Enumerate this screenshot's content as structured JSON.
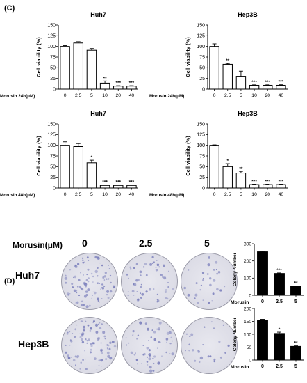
{
  "panels": {
    "c": "(C)",
    "d": "(D)"
  },
  "colony": {
    "title": "Morusin(μM)",
    "doses": [
      "0",
      "2.5",
      "5"
    ],
    "rows": [
      "Huh7",
      "Hep3B"
    ]
  },
  "dish_density": {
    "Huh7": [
      1.0,
      0.55,
      0.25
    ],
    "Hep3B": [
      0.9,
      0.55,
      0.2
    ]
  },
  "chart_data": [
    {
      "type": "bar",
      "title": "Huh7",
      "ylabel": "Cell viability (%)",
      "xlabel_prefix": "Morusin 24h(μM)",
      "categories": [
        "0",
        "2.5",
        "5",
        "10",
        "20",
        "40"
      ],
      "values": [
        100,
        108,
        91,
        14,
        7,
        7
      ],
      "errors": [
        2,
        3,
        4,
        5,
        1,
        1
      ],
      "sig": [
        "",
        "",
        "",
        "**",
        "***",
        "***"
      ],
      "ylim": [
        0,
        150
      ],
      "yticks": [
        0,
        25,
        50,
        75,
        100,
        125,
        150
      ]
    },
    {
      "type": "bar",
      "title": "Hep3B",
      "ylabel": "Cell viability (%)",
      "xlabel_prefix": "Morusin 24h(μM)",
      "categories": [
        "0",
        "2.5",
        "5",
        "10",
        "20",
        "40"
      ],
      "values": [
        100,
        58,
        30,
        9,
        9,
        9
      ],
      "errors": [
        6,
        2,
        12,
        1,
        1,
        2
      ],
      "sig": [
        "",
        "**",
        "",
        "***",
        "***",
        "***"
      ],
      "ylim": [
        0,
        150
      ],
      "yticks": [
        0,
        25,
        50,
        75,
        100,
        125,
        150
      ]
    },
    {
      "type": "bar",
      "title": "Huh7",
      "ylabel": "Cell viability (%)",
      "xlabel_prefix": "Morusin 48h(μM)",
      "categories": [
        "0",
        "2.5",
        "5",
        "10",
        "20",
        "40"
      ],
      "values": [
        100,
        97,
        59,
        6,
        6,
        6
      ],
      "errors": [
        8,
        7,
        6,
        1,
        1,
        1
      ],
      "sig": [
        "",
        "",
        "*",
        "***",
        "***",
        "***"
      ],
      "ylim": [
        0,
        150
      ],
      "yticks": [
        0,
        25,
        50,
        75,
        100,
        125,
        150
      ]
    },
    {
      "type": "bar",
      "title": "Hep3B",
      "ylabel": "Cell viability (%)",
      "xlabel_prefix": "Morusin 48h(μM)",
      "categories": [
        "0",
        "2.5",
        "5",
        "10",
        "20",
        "40"
      ],
      "values": [
        100,
        50,
        35,
        8,
        8,
        8
      ],
      "errors": [
        1,
        7,
        4,
        1,
        1,
        1
      ],
      "sig": [
        "",
        "*",
        "**",
        "***",
        "***",
        "***"
      ],
      "ylim": [
        0,
        150
      ],
      "yticks": [
        0,
        25,
        50,
        75,
        100,
        125,
        150
      ]
    },
    {
      "type": "bar",
      "title": "",
      "ylabel": "Colony Number",
      "xlabel_prefix": "Morusin",
      "categories": [
        "0",
        "2.5",
        "5"
      ],
      "values": [
        253,
        127,
        52
      ],
      "errors": [
        3,
        3,
        2
      ],
      "sig": [
        "",
        "***",
        "**"
      ],
      "ylim": [
        0,
        300
      ],
      "yticks": [
        0,
        100,
        200,
        300
      ]
    },
    {
      "type": "bar",
      "title": "",
      "ylabel": "Colony Number",
      "xlabel_prefix": "Morusin",
      "categories": [
        "0",
        "2.5",
        "5"
      ],
      "values": [
        155,
        103,
        53
      ],
      "errors": [
        3,
        5,
        2
      ],
      "sig": [
        "",
        "*",
        "**"
      ],
      "ylim": [
        0,
        200
      ],
      "yticks": [
        0,
        50,
        100,
        150,
        200
      ]
    }
  ]
}
